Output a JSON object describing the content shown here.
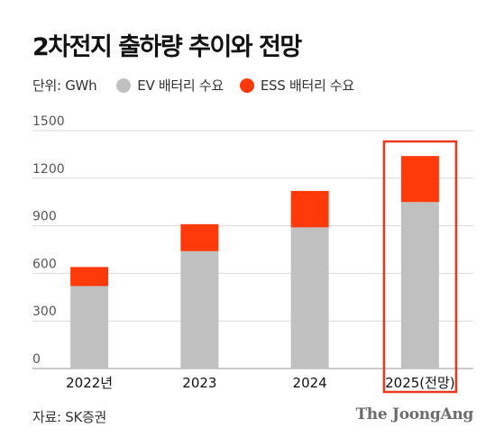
{
  "title": "2차전지 출하량 추이와 전망",
  "legend": {
    "unit": "단위: GWh",
    "items": [
      {
        "label": "EV 배터리 수요",
        "color": "#c0c0c0"
      },
      {
        "label": "ESS 배터리 수요",
        "color": "#ff3a0a"
      }
    ]
  },
  "chart_data": {
    "type": "bar",
    "stacked": true,
    "categories": [
      "2022년",
      "2023",
      "2024",
      "2025(전망)"
    ],
    "series": [
      {
        "name": "EV 배터리 수요",
        "color": "#c0c0c0",
        "values": [
          520,
          740,
          890,
          1050
        ]
      },
      {
        "name": "ESS 배터리 수요",
        "color": "#ff3a0a",
        "values": [
          120,
          170,
          230,
          290
        ]
      }
    ],
    "y_ticks": [
      0,
      300,
      600,
      900,
      1200,
      1500
    ],
    "ylim": [
      0,
      1500
    ],
    "grid": true,
    "highlight_category": "2025(전망)",
    "highlight_color": "#e8391e"
  },
  "footer": {
    "source": "자료: SK증권",
    "brand": "The JoongAng"
  }
}
